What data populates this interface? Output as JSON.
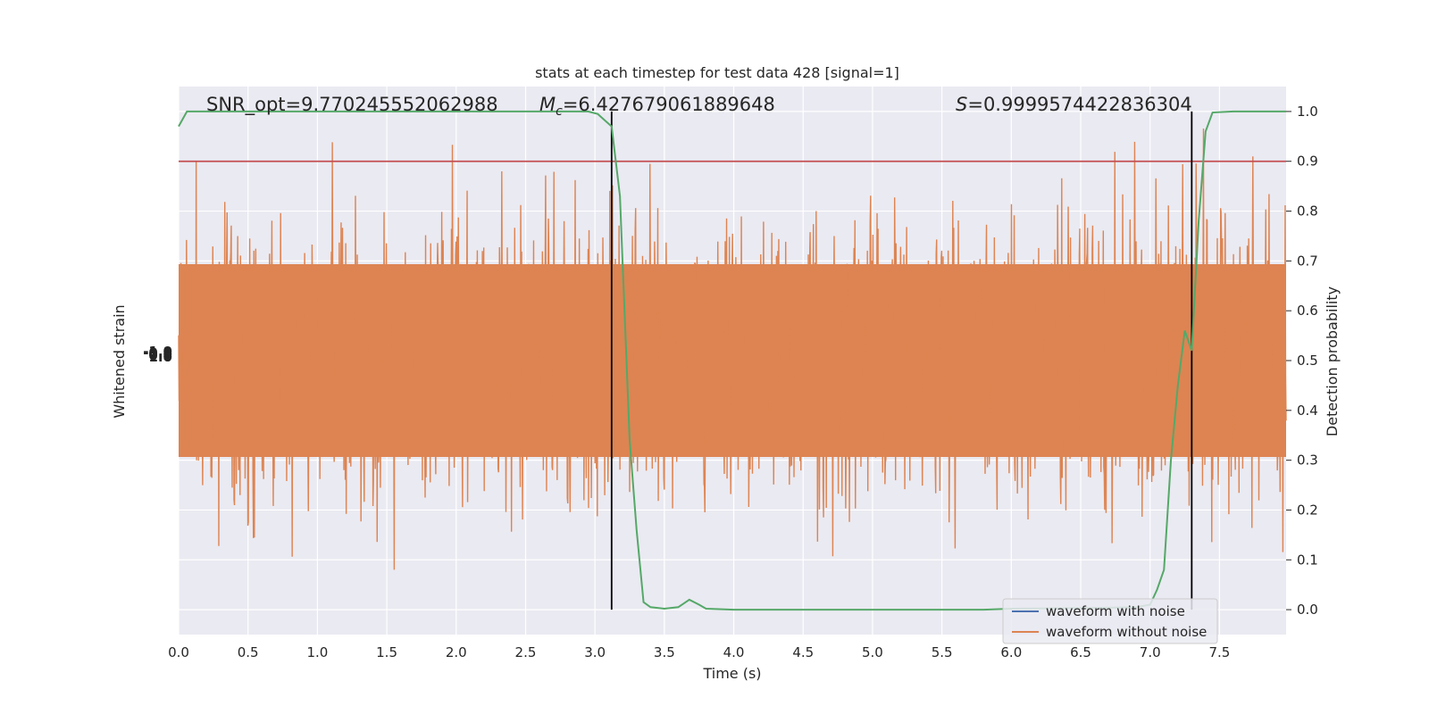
{
  "chart_data": {
    "type": "line",
    "title": "stats at each timestep for test data 428 [signal=1]",
    "xlabel": "Time (s)",
    "ylabel_left": "Whitened strain",
    "ylabel_right": "Detection probability",
    "xlim": [
      0.0,
      7.98
    ],
    "ylim_right": [
      -0.05,
      1.05
    ],
    "x_ticks": [
      "0.0",
      "0.5",
      "1.0",
      "1.5",
      "2.0",
      "2.5",
      "3.0",
      "3.5",
      "4.0",
      "4.5",
      "5.0",
      "5.5",
      "6.0",
      "6.5",
      "7.0",
      "7.5"
    ],
    "y_ticks_right": [
      "0.0",
      "0.1",
      "0.2",
      "0.3",
      "0.4",
      "0.5",
      "0.6",
      "0.7",
      "0.8",
      "0.9",
      "1.0"
    ],
    "left_axis_tick_labels": [
      "-1.0",
      "-0.5",
      "0.0",
      "0.5",
      "1.0"
    ],
    "grid": true,
    "legend_position": "lower-right",
    "annotations": {
      "snr": "SNR_opt=9.770245552062988",
      "mc_prefix": "M",
      "mc_sub": "c",
      "mc_value": "=6.427679061889648",
      "s_prefix": "S",
      "s_value": "=0.9999574422836304"
    },
    "threshold": 0.9,
    "vertical_lines_x": [
      3.12,
      7.3
    ],
    "series": [
      {
        "name": "waveform with noise",
        "color": "#4c72b0"
      },
      {
        "name": "waveform without noise",
        "color": "#dd8452"
      }
    ],
    "detection_probability": {
      "color": "#55a868",
      "x": [
        0.0,
        0.06,
        0.5,
        1.0,
        1.5,
        2.0,
        2.5,
        2.95,
        3.02,
        3.08,
        3.12,
        3.18,
        3.25,
        3.3,
        3.35,
        3.4,
        3.5,
        3.6,
        3.68,
        3.75,
        3.8,
        4.0,
        4.5,
        5.0,
        5.5,
        5.8,
        6.0,
        6.5,
        6.9,
        7.0,
        7.05,
        7.1,
        7.15,
        7.2,
        7.25,
        7.3,
        7.35,
        7.4,
        7.45,
        7.6,
        7.98
      ],
      "y": [
        0.97,
        1.0,
        1.0,
        1.0,
        1.0,
        1.0,
        1.0,
        1.0,
        0.995,
        0.98,
        0.97,
        0.83,
        0.34,
        0.16,
        0.015,
        0.005,
        0.002,
        0.005,
        0.02,
        0.01,
        0.002,
        0.0,
        0.0,
        0.0,
        0.0,
        0.0,
        0.002,
        0.003,
        0.005,
        0.01,
        0.04,
        0.08,
        0.3,
        0.45,
        0.56,
        0.52,
        0.78,
        0.96,
        0.998,
        1.0,
        1.0
      ]
    }
  }
}
